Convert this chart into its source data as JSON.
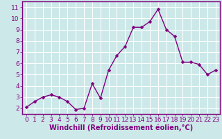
{
  "x": [
    0,
    1,
    2,
    3,
    4,
    5,
    6,
    7,
    8,
    9,
    10,
    11,
    12,
    13,
    14,
    15,
    16,
    17,
    18,
    19,
    20,
    21,
    22,
    23
  ],
  "y": [
    2.1,
    2.6,
    3.0,
    3.2,
    3.0,
    2.6,
    1.9,
    2.0,
    4.2,
    2.9,
    5.4,
    6.7,
    7.5,
    9.2,
    9.2,
    9.7,
    10.8,
    9.0,
    8.4,
    6.1,
    6.1,
    5.9,
    5.0,
    5.4
  ],
  "line_color": "#800080",
  "marker_color": "#800080",
  "bg_color": "#cce8e8",
  "grid_color": "#ffffff",
  "xlabel": "Windchill (Refroidissement éolien,°C)",
  "xlim": [
    -0.5,
    23.5
  ],
  "ylim": [
    1.5,
    11.5
  ],
  "yticks": [
    2,
    3,
    4,
    5,
    6,
    7,
    8,
    9,
    10,
    11
  ],
  "xticks": [
    0,
    1,
    2,
    3,
    4,
    5,
    6,
    7,
    8,
    9,
    10,
    11,
    12,
    13,
    14,
    15,
    16,
    17,
    18,
    19,
    20,
    21,
    22,
    23
  ],
  "label_fontsize": 7.0,
  "tick_fontsize": 6.5,
  "line_width": 1.0,
  "marker_size": 2.5
}
